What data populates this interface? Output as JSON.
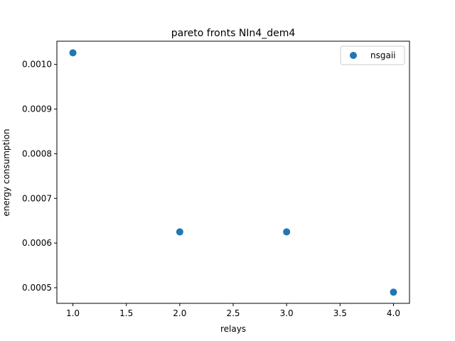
{
  "chart_data": {
    "type": "scatter",
    "title": "pareto fronts NIn4_dem4",
    "xlabel": "relays",
    "ylabel": "energy consumption",
    "xlim": [
      0.85,
      4.15
    ],
    "ylim": [
      0.000465,
      0.001052
    ],
    "x_ticks": [
      1.0,
      1.5,
      2.0,
      2.5,
      3.0,
      3.5,
      4.0
    ],
    "x_tick_labels": [
      "1.0",
      "1.5",
      "2.0",
      "2.5",
      "3.0",
      "3.5",
      "4.0"
    ],
    "y_ticks": [
      0.0005,
      0.0006,
      0.0007,
      0.0008,
      0.0009,
      0.001
    ],
    "y_tick_labels": [
      "0.0005",
      "0.0006",
      "0.0007",
      "0.0008",
      "0.0009",
      "0.0010"
    ],
    "grid": false,
    "legend_position": "top-right",
    "series": [
      {
        "name": "nsgaii",
        "color": "#1f77b4",
        "points": [
          {
            "x": 1,
            "y": 0.001026
          },
          {
            "x": 2,
            "y": 0.000625
          },
          {
            "x": 3,
            "y": 0.000625
          },
          {
            "x": 4,
            "y": 0.00049
          }
        ]
      }
    ]
  }
}
